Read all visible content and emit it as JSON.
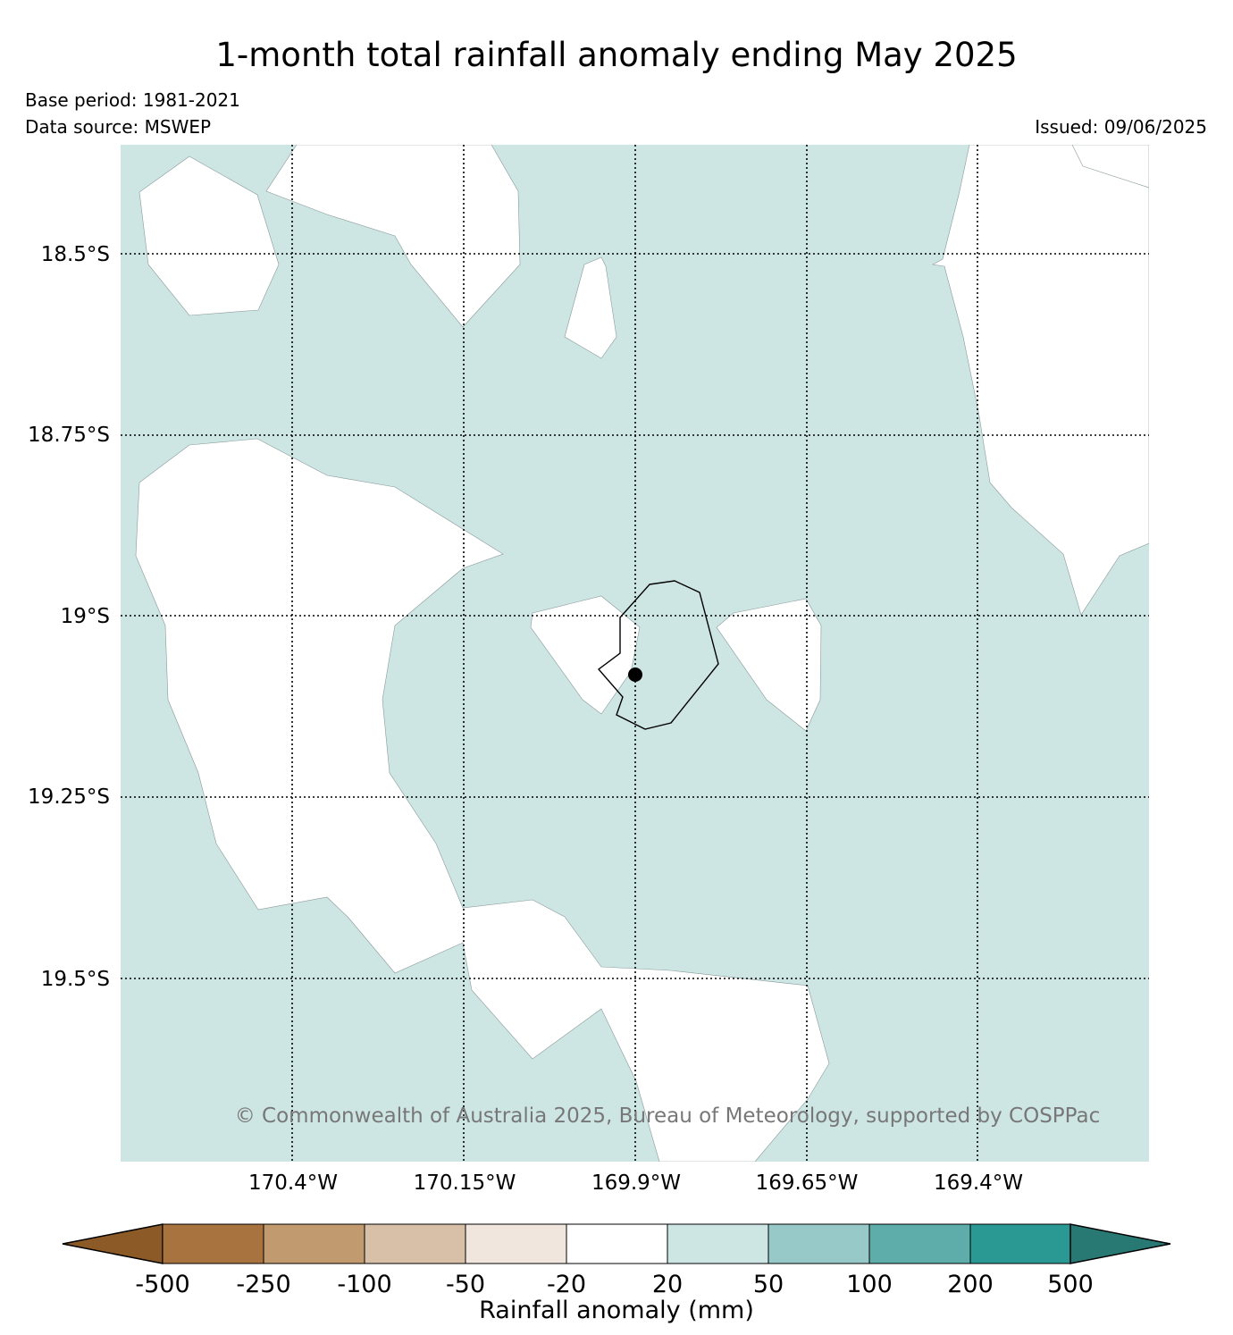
{
  "header": {
    "title": "1-month total rainfall anomaly ending May 2025",
    "base_period": "Base period: 1981-2021",
    "data_source": "Data source: MSWEP",
    "issued": "Issued: 09/06/2025"
  },
  "map": {
    "lat_labels": [
      "18.5°S",
      "18.75°S",
      "19°S",
      "19.25°S",
      "19.5°S"
    ],
    "lon_labels": [
      "170.4°W",
      "170.15°W",
      "169.9°W",
      "169.65°W",
      "169.4°W"
    ],
    "copyright": "© Commonwealth of Australia 2025, Bureau of Meteorology, supported by COSPPac",
    "colors": {
      "anomaly_20_50": "#cde5e3",
      "anomaly_neutral": "#ffffff",
      "island_outline": "#000000",
      "marker": "#000000"
    }
  },
  "colorbar": {
    "label": "Rainfall anomaly (mm)",
    "ticks": [
      "-500",
      "-250",
      "-100",
      "-50",
      "-20",
      "20",
      "50",
      "100",
      "200",
      "500"
    ],
    "colors": [
      "#8c5a26",
      "#a8733f",
      "#c19a70",
      "#d8bfa7",
      "#f0e6dd",
      "#ffffff",
      "#cde5e3",
      "#97c9c8",
      "#5eadab",
      "#2a9893",
      "#287874"
    ]
  }
}
